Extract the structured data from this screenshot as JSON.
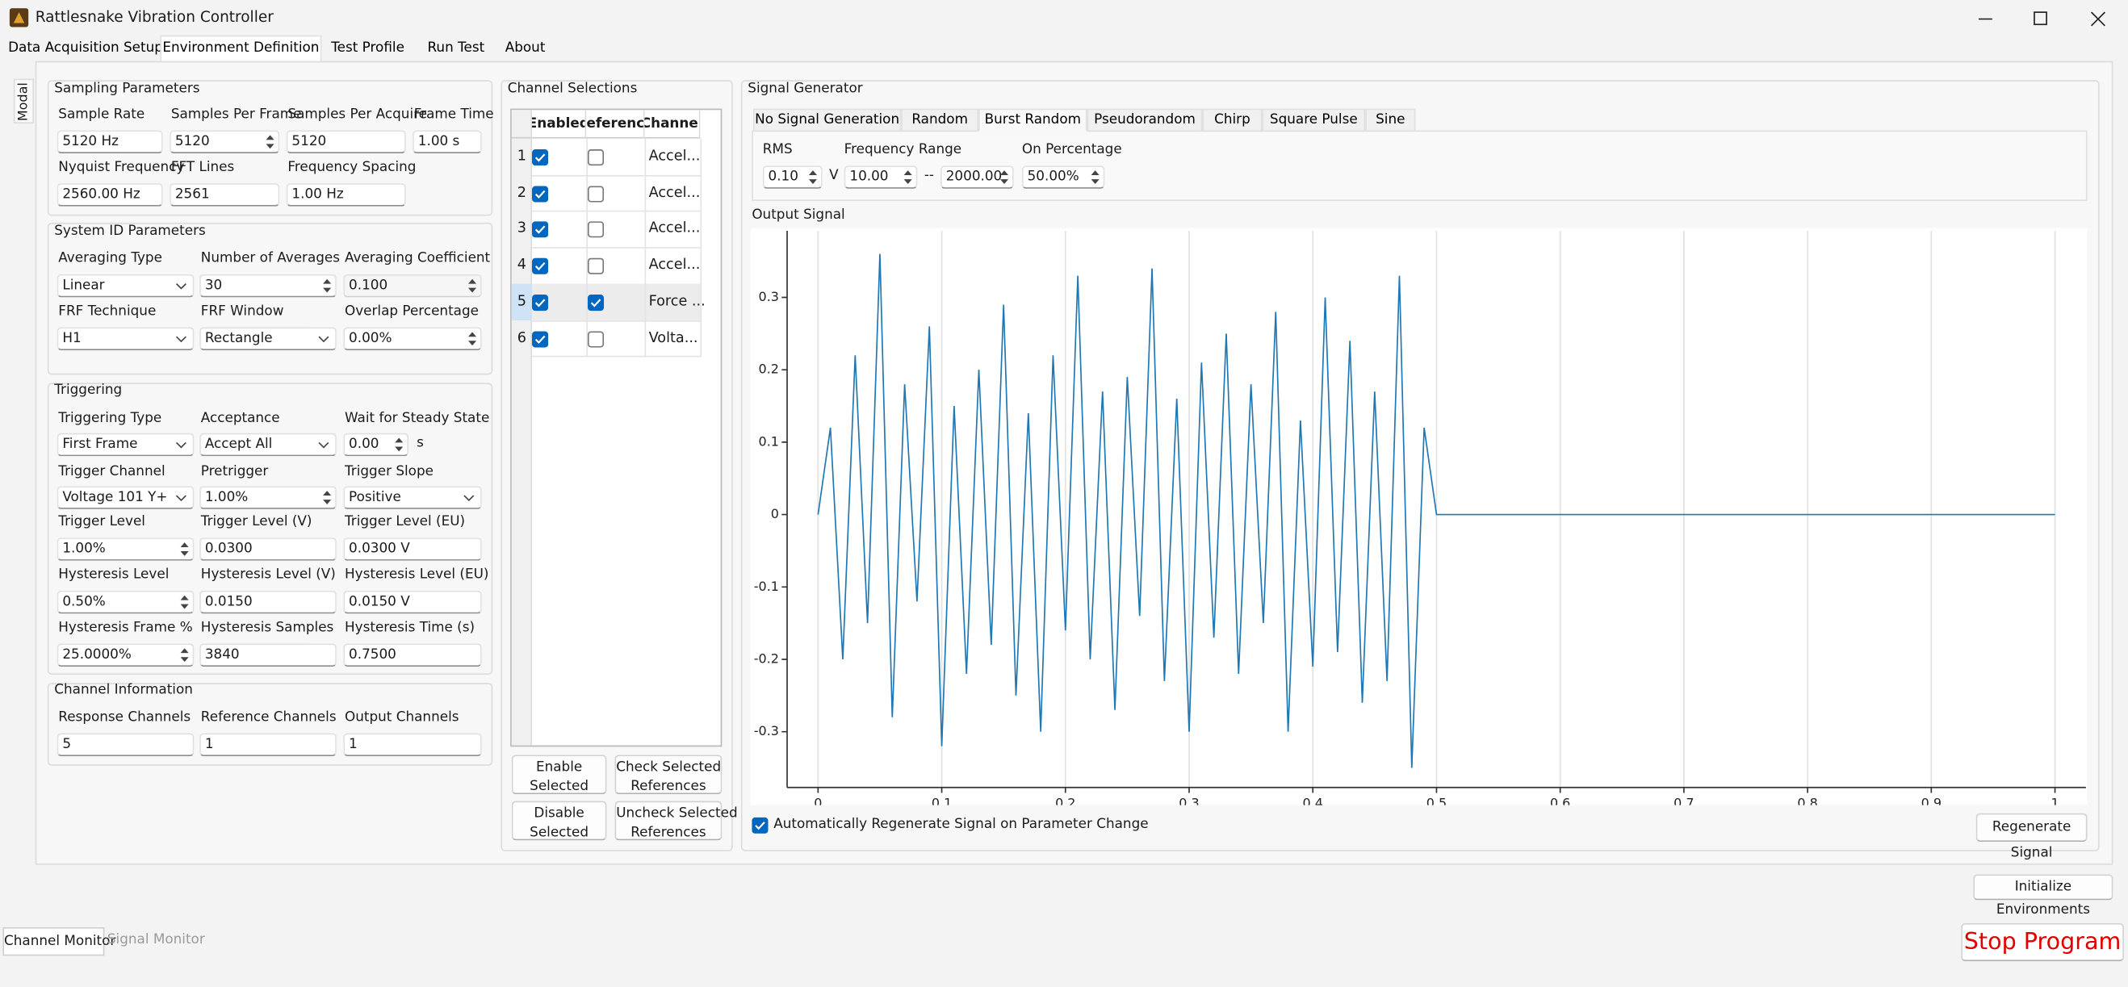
{
  "window": {
    "title": "Rattlesnake Vibration Controller"
  },
  "tabs": [
    "Data Acquisition Setup",
    "Environment Definition",
    "Test Profile",
    "Run Test",
    "About"
  ],
  "active_tab": 1,
  "side_tab": "Modal",
  "sampling_parameters": {
    "title": "Sampling Parameters",
    "fields": [
      {
        "label": "Sample Rate",
        "value": "5120 Hz"
      },
      {
        "label": "Samples Per Frame",
        "value": "5120"
      },
      {
        "label": "Samples Per Acquire",
        "value": "5120"
      },
      {
        "label": "Frame Time",
        "value": "1.00 s"
      },
      {
        "label": "Nyquist Frequency",
        "value": "2560.00 Hz"
      },
      {
        "label": "FFT Lines",
        "value": "2561"
      },
      {
        "label": "Frequency Spacing",
        "value": "1.00 Hz"
      }
    ]
  },
  "system_id_parameters": {
    "title": "System ID Parameters",
    "fields": [
      {
        "label": "Averaging Type",
        "value": "Linear"
      },
      {
        "label": "Number of Averages",
        "value": "30"
      },
      {
        "label": "Averaging Coefficient",
        "value": "0.100"
      },
      {
        "label": "FRF Technique",
        "value": "H1"
      },
      {
        "label": "FRF Window",
        "value": "Rectangle"
      },
      {
        "label": "Overlap Percentage",
        "value": "0.00%"
      }
    ]
  },
  "triggering": {
    "title": "Triggering",
    "wait_unit": "s",
    "fields": [
      {
        "label": "Triggering Type",
        "value": "First Frame"
      },
      {
        "label": "Acceptance",
        "value": "Accept All"
      },
      {
        "label": "Wait for Steady State",
        "value": "0.00"
      },
      {
        "label": "Trigger Channel",
        "value": "Voltage 101 Y+"
      },
      {
        "label": "Pretrigger",
        "value": "1.00%"
      },
      {
        "label": "Trigger Slope",
        "value": "Positive"
      },
      {
        "label": "Trigger Level",
        "value": "1.00%"
      },
      {
        "label": "Trigger Level (V)",
        "value": "0.0300"
      },
      {
        "label": "Trigger Level (EU)",
        "value": "0.0300 V"
      },
      {
        "label": "Hysteresis Level",
        "value": "0.50%"
      },
      {
        "label": "Hysteresis Level (V)",
        "value": "0.0150"
      },
      {
        "label": "Hysteresis Level (EU)",
        "value": "0.0150 V"
      },
      {
        "label": "Hysteresis Frame %",
        "value": "25.0000%"
      },
      {
        "label": "Hysteresis Samples",
        "value": "3840"
      },
      {
        "label": "Hysteresis Time (s)",
        "value": "0.7500"
      }
    ]
  },
  "channel_information": {
    "title": "Channel Information",
    "fields": [
      {
        "label": "Response Channels",
        "value": "5"
      },
      {
        "label": "Reference Channels",
        "value": "1"
      },
      {
        "label": "Output Channels",
        "value": "1"
      }
    ]
  },
  "channel_selections": {
    "title": "Channel Selections",
    "headers": [
      "Enabled",
      "Reference",
      "Channel"
    ],
    "rows": [
      {
        "index": 1,
        "enabled": true,
        "reference": false,
        "channel": "Accel...",
        "selected": false
      },
      {
        "index": 2,
        "enabled": true,
        "reference": false,
        "channel": "Accel...",
        "selected": false
      },
      {
        "index": 3,
        "enabled": true,
        "reference": false,
        "channel": "Accel...",
        "selected": false
      },
      {
        "index": 4,
        "enabled": true,
        "reference": false,
        "channel": "Accel...",
        "selected": false
      },
      {
        "index": 5,
        "enabled": true,
        "reference": true,
        "channel": "Force ...",
        "selected": true
      },
      {
        "index": 6,
        "enabled": true,
        "reference": false,
        "channel": "Volta...",
        "selected": false
      }
    ],
    "buttons": [
      [
        "Enable",
        "Selected"
      ],
      [
        "Check Selected",
        "References"
      ],
      [
        "Disable",
        "Selected"
      ],
      [
        "Uncheck Selected",
        "References"
      ]
    ]
  },
  "signal_generator": {
    "title": "Signal Generator",
    "tabs": [
      "No Signal Generation",
      "Random",
      "Burst Random",
      "Pseudorandom",
      "Chirp",
      "Square Pulse",
      "Sine"
    ],
    "active_tab": 2,
    "rms": {
      "label": "RMS",
      "value": "0.10",
      "unit": "V"
    },
    "frequency_range": {
      "label": "Frequency Range",
      "low": "10.00",
      "separator": "--",
      "high": "2000.00"
    },
    "on_percentage": {
      "label": "On Percentage",
      "value": "50.00%"
    },
    "output_label": "Output Signal",
    "auto_regenerate": {
      "label": "Automatically Regenerate Signal on Parameter Change",
      "checked": true
    },
    "regenerate_button": "Regenerate Signal"
  },
  "chart_data": {
    "type": "line",
    "color": "#1f77b4",
    "grid": "x",
    "x": [
      0,
      0.01,
      0.02,
      0.03,
      0.04,
      0.05,
      0.06,
      0.07,
      0.08,
      0.09,
      0.1,
      0.11,
      0.12,
      0.13,
      0.14,
      0.15,
      0.16,
      0.17,
      0.18,
      0.19,
      0.2,
      0.21,
      0.22,
      0.23,
      0.24,
      0.25,
      0.26,
      0.27,
      0.28,
      0.29,
      0.3,
      0.31,
      0.32,
      0.33,
      0.34,
      0.35,
      0.36,
      0.37,
      0.38,
      0.39,
      0.4,
      0.41,
      0.42,
      0.43,
      0.44,
      0.45,
      0.46,
      0.47,
      0.48,
      0.49,
      0.5,
      1
    ],
    "values": [
      0,
      0.12,
      -0.2,
      0.22,
      -0.15,
      0.36,
      -0.28,
      0.18,
      -0.12,
      0.26,
      -0.32,
      0.15,
      -0.22,
      0.2,
      -0.18,
      0.29,
      -0.25,
      0.14,
      -0.3,
      0.22,
      -0.16,
      0.33,
      -0.2,
      0.17,
      -0.27,
      0.19,
      -0.14,
      0.34,
      -0.23,
      0.16,
      -0.3,
      0.21,
      -0.17,
      0.25,
      -0.22,
      0.18,
      -0.15,
      0.28,
      -0.3,
      0.13,
      -0.21,
      0.3,
      -0.19,
      0.24,
      -0.26,
      0.17,
      -0.23,
      0.33,
      -0.35,
      0.12,
      0,
      0
    ],
    "xlim": [
      -0.025,
      1.025
    ],
    "ylim": [
      -0.377,
      0.392
    ],
    "xticks": [
      0,
      0.1,
      0.2,
      0.3,
      0.4,
      0.5,
      0.6,
      0.7,
      0.8,
      0.9,
      1
    ],
    "yticks": [
      -0.3,
      -0.2,
      -0.1,
      0,
      0.1,
      0.2,
      0.3
    ]
  },
  "footer": {
    "initialize_button": "Initialize Environments",
    "bottom_tabs": [
      "Channel Monitor",
      "Signal Monitor"
    ],
    "active_bottom_tab": 0,
    "stop_button": "Stop Program"
  }
}
